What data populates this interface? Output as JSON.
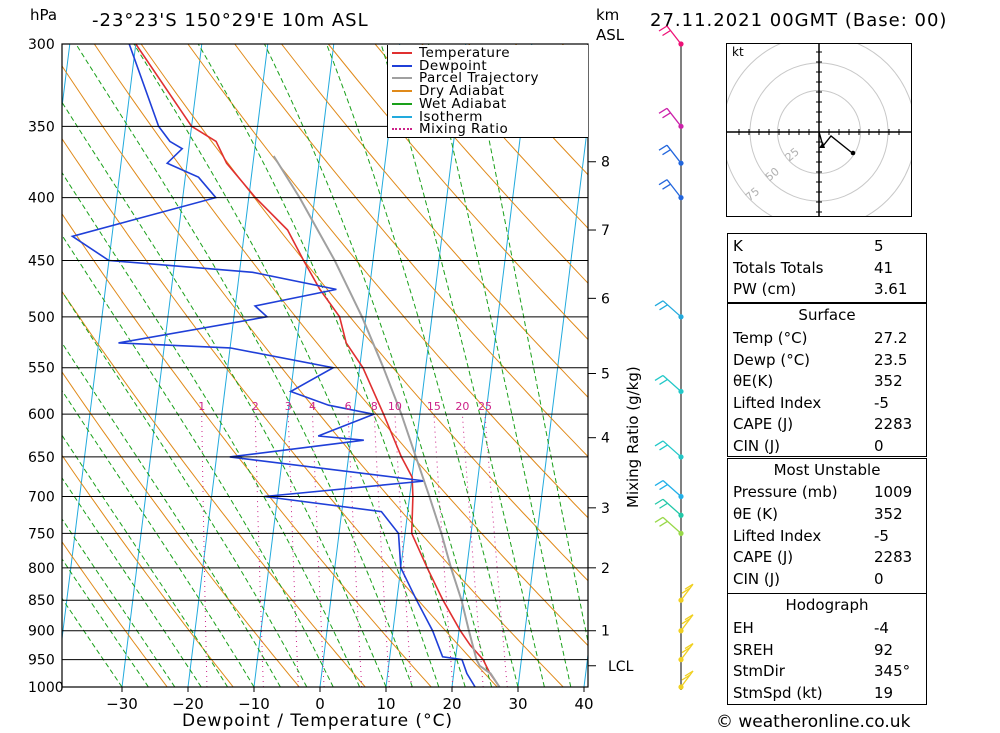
{
  "header": {
    "left_unit": "hPa",
    "location": "-23°23'S 150°29'E 10m ASL",
    "km_unit": "km",
    "asl_unit": "ASL",
    "datetime": "27.11.2021 00GMT (Base: 00)"
  },
  "footer": {
    "copyright": "© weatheronline.co.uk"
  },
  "colors": {
    "temperature": "#e03030",
    "dewpoint": "#1f3fd8",
    "parcel": "#a0a0a0",
    "dry_adiabat": "#e08a1a",
    "wet_adiabat": "#1aa01a",
    "isotherm": "#22aadd",
    "mixing_ratio": "#cc2288"
  },
  "chart_data": {
    "type": "line",
    "subtype": "skew-t log-p",
    "xlabel": "Dewpoint / Temperature (°C)",
    "ylabel": "hPa",
    "secondary_ylabel": "Mixing Ratio (g/kg)",
    "xlim": [
      -40,
      40
    ],
    "ylim": [
      1000,
      300
    ],
    "x_ticks": [
      -30,
      -20,
      -10,
      0,
      10,
      20,
      30,
      40
    ],
    "pressure_ticks": [
      300,
      350,
      400,
      450,
      500,
      550,
      600,
      650,
      700,
      750,
      800,
      850,
      900,
      950,
      1000
    ],
    "km_ticks": [
      {
        "label": "8",
        "p": 374
      },
      {
        "label": "7",
        "p": 425
      },
      {
        "label": "6",
        "p": 483
      },
      {
        "label": "5",
        "p": 556
      },
      {
        "label": "4",
        "p": 627
      },
      {
        "label": "3",
        "p": 715
      },
      {
        "label": "2",
        "p": 800
      },
      {
        "label": "1",
        "p": 900
      },
      {
        "label": "LCL",
        "p": 961
      }
    ],
    "mixing_ratio_labels": [
      "1",
      "2",
      "3",
      "4",
      "6",
      "8",
      "10",
      "15",
      "20",
      "25"
    ],
    "legend": [
      {
        "name": "Temperature",
        "color_key": "temperature",
        "style": "solid"
      },
      {
        "name": "Dewpoint",
        "color_key": "dewpoint",
        "style": "solid"
      },
      {
        "name": "Parcel Trajectory",
        "color_key": "parcel",
        "style": "solid"
      },
      {
        "name": "Dry Adiabat",
        "color_key": "dry_adiabat",
        "style": "solid"
      },
      {
        "name": "Wet Adiabat",
        "color_key": "wet_adiabat",
        "style": "solid"
      },
      {
        "name": "Isotherm",
        "color_key": "isotherm",
        "style": "solid"
      },
      {
        "name": "Mixing Ratio",
        "color_key": "mixing_ratio",
        "style": "dotted"
      }
    ],
    "legend_position": "top-right",
    "series": [
      {
        "name": "Temperature",
        "points": [
          [
            1000,
            27.2
          ],
          [
            975,
            25.5
          ],
          [
            950,
            24.2
          ],
          [
            925,
            22.0
          ],
          [
            900,
            20.2
          ],
          [
            850,
            17.0
          ],
          [
            800,
            14.0
          ],
          [
            750,
            11.0
          ],
          [
            700,
            10.5
          ],
          [
            675,
            10.0
          ],
          [
            650,
            8.0
          ],
          [
            600,
            4.5
          ],
          [
            550,
            0.5
          ],
          [
            525,
            -2.5
          ],
          [
            500,
            -4.0
          ],
          [
            475,
            -7.5
          ],
          [
            450,
            -10.5
          ],
          [
            425,
            -13.5
          ],
          [
            400,
            -19.0
          ],
          [
            375,
            -24.0
          ],
          [
            360,
            -26.0
          ],
          [
            350,
            -30.0
          ],
          [
            300,
            -40.0
          ]
        ]
      },
      {
        "name": "Dewpoint",
        "points": [
          [
            1000,
            23.5
          ],
          [
            975,
            22.0
          ],
          [
            950,
            21.0
          ],
          [
            945,
            18.0
          ],
          [
            900,
            16.0
          ],
          [
            850,
            13.0
          ],
          [
            800,
            10.0
          ],
          [
            750,
            9.0
          ],
          [
            720,
            6.0
          ],
          [
            700,
            -12.0
          ],
          [
            680,
            12.0
          ],
          [
            650,
            -18.0
          ],
          [
            630,
            2.0
          ],
          [
            625,
            -5.0
          ],
          [
            600,
            3.0
          ],
          [
            590,
            -4.0
          ],
          [
            575,
            -10.0
          ],
          [
            550,
            -4.0
          ],
          [
            530,
            -20.0
          ],
          [
            525,
            -37.0
          ],
          [
            500,
            -15.0
          ],
          [
            490,
            -17.0
          ],
          [
            475,
            -5.0
          ],
          [
            460,
            -18.0
          ],
          [
            450,
            -40.0
          ],
          [
            430,
            -46.0
          ],
          [
            400,
            -25.0
          ],
          [
            385,
            -28.0
          ],
          [
            375,
            -33.0
          ],
          [
            365,
            -31.0
          ],
          [
            360,
            -33.0
          ],
          [
            350,
            -35.0
          ],
          [
            300,
            -41.0
          ]
        ]
      },
      {
        "name": "Parcel Trajectory",
        "points": [
          [
            1000,
            27.2
          ],
          [
            975,
            25.6
          ],
          [
            961,
            23.8
          ],
          [
            950,
            23.2
          ],
          [
            900,
            21.5
          ],
          [
            850,
            19.8
          ],
          [
            800,
            17.6
          ],
          [
            750,
            15.5
          ],
          [
            700,
            13.0
          ],
          [
            650,
            10.2
          ],
          [
            600,
            7.2
          ],
          [
            550,
            3.6
          ],
          [
            500,
            -0.6
          ],
          [
            450,
            -5.8
          ],
          [
            400,
            -12.3
          ],
          [
            370,
            -17.0
          ]
        ]
      }
    ],
    "wind_barbs": [
      {
        "p": 1000,
        "color": "#f0d020"
      },
      {
        "p": 950,
        "color": "#f0d020"
      },
      {
        "p": 900,
        "color": "#f0d020"
      },
      {
        "p": 850,
        "color": "#f0d020"
      },
      {
        "p": 750,
        "color": "#98d848"
      },
      {
        "p": 725,
        "color": "#22c8a8"
      },
      {
        "p": 700,
        "color": "#22b0e8"
      },
      {
        "p": 650,
        "color": "#22c8c8"
      },
      {
        "p": 575,
        "color": "#22c8c8"
      },
      {
        "p": 500,
        "color": "#22aadd"
      },
      {
        "p": 400,
        "color": "#2266dd"
      },
      {
        "p": 375,
        "color": "#2266dd"
      },
      {
        "p": 350,
        "color": "#cc22aa"
      },
      {
        "p": 300,
        "color": "#ee1177"
      }
    ],
    "hodograph": {
      "unit": "kt",
      "ring_labels": [
        "25",
        "50",
        "75"
      ]
    }
  },
  "indices": {
    "top": [
      {
        "label": "K",
        "value": "5"
      },
      {
        "label": "Totals Totals",
        "value": "41"
      },
      {
        "label": "PW (cm)",
        "value": "3.61"
      }
    ],
    "surface": {
      "title": "Surface",
      "rows": [
        {
          "label": "Temp (°C)",
          "value": "27.2"
        },
        {
          "label": "Dewp (°C)",
          "value": "23.5"
        },
        {
          "label": "θE(K)",
          "value": "352"
        },
        {
          "label": "Lifted Index",
          "value": "-5"
        },
        {
          "label": "CAPE (J)",
          "value": "2283"
        },
        {
          "label": "CIN (J)",
          "value": "0"
        }
      ]
    },
    "most_unstable": {
      "title": "Most Unstable",
      "rows": [
        {
          "label": "Pressure (mb)",
          "value": "1009"
        },
        {
          "label": "θE (K)",
          "value": "352"
        },
        {
          "label": "Lifted Index",
          "value": "-5"
        },
        {
          "label": "CAPE (J)",
          "value": "2283"
        },
        {
          "label": "CIN (J)",
          "value": "0"
        }
      ]
    },
    "hodograph": {
      "title": "Hodograph",
      "rows": [
        {
          "label": "EH",
          "value": "-4"
        },
        {
          "label": "SREH",
          "value": "92"
        },
        {
          "label": "StmDir",
          "value": "345°"
        },
        {
          "label": "StmSpd (kt)",
          "value": "19"
        }
      ]
    }
  }
}
